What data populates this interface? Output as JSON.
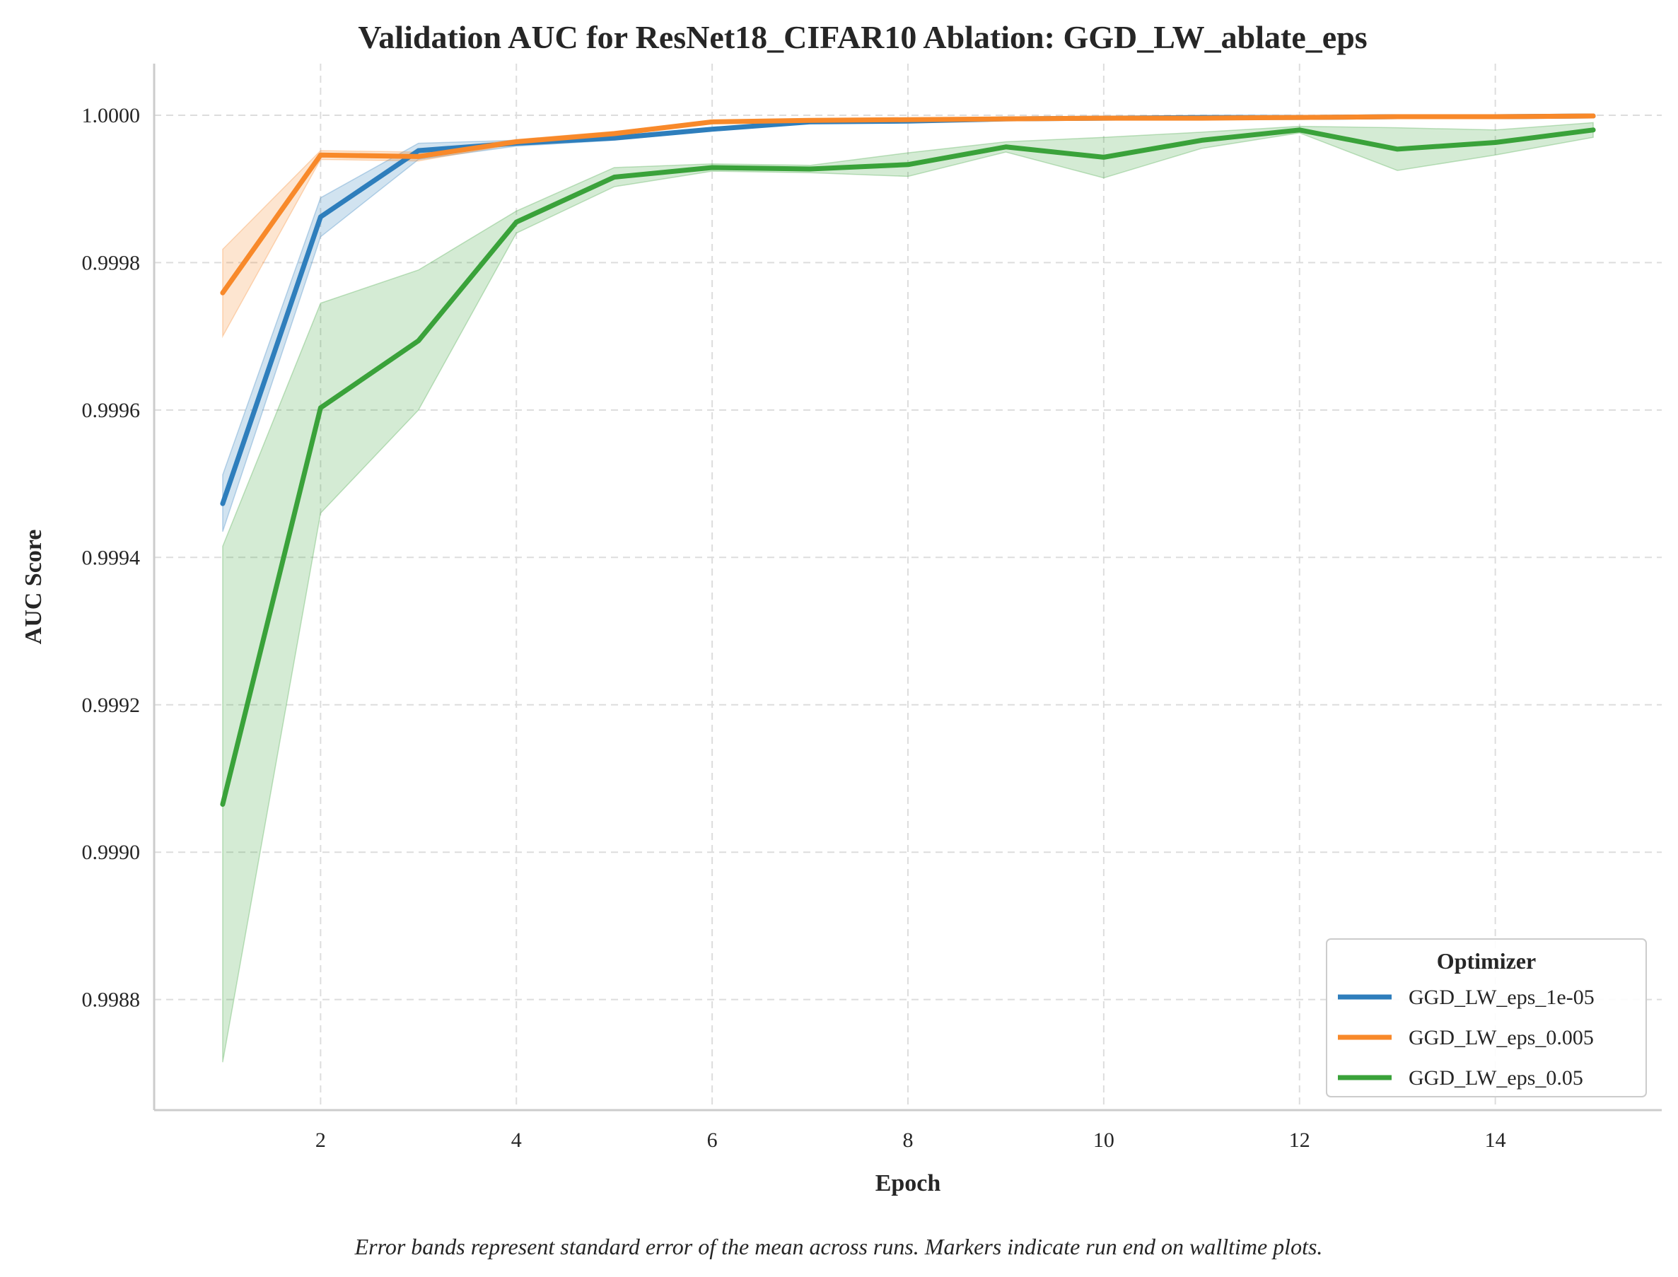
{
  "chart_data": {
    "type": "line",
    "title": "Validation AUC for ResNet18_CIFAR10 Ablation: GGD_LW_ablate_eps",
    "xlabel": "Epoch",
    "ylabel": "AUC Score",
    "xlim": [
      0.3,
      15.7
    ],
    "ylim": [
      0.99865,
      1.00007
    ],
    "x_ticks": [
      2,
      4,
      6,
      8,
      10,
      12,
      14
    ],
    "x_tick_labels": [
      "2",
      "4",
      "6",
      "8",
      "10",
      "12",
      "14"
    ],
    "y_ticks": [
      0.9988,
      0.999,
      0.9992,
      0.9994,
      0.9996,
      0.9998,
      1.0
    ],
    "y_tick_labels": [
      "0.9988",
      "0.9990",
      "0.9992",
      "0.9994",
      "0.9996",
      "0.9998",
      "1.0000"
    ],
    "grid": true,
    "legend": {
      "title": "Optimizer",
      "position": "bottom-right"
    },
    "x": [
      1,
      2,
      3,
      4,
      5,
      6,
      7,
      8,
      9,
      10,
      11,
      12,
      13,
      14,
      15
    ],
    "series": [
      {
        "name": "GGD_LW_eps_1e-05",
        "color": "#2e7ebc",
        "values": [
          0.999473,
          0.999862,
          0.999952,
          0.999962,
          0.999969,
          0.999981,
          0.999991,
          0.999992,
          0.999995,
          0.999996,
          0.999997,
          0.999997,
          0.999998,
          0.999998,
          0.999999
        ],
        "lower": [
          0.999435,
          0.999835,
          0.99994,
          0.999958,
          0.999966,
          0.999979,
          0.99999,
          0.999991,
          0.999994,
          0.999995,
          0.999996,
          0.999996,
          0.999997,
          0.999997,
          0.999998
        ],
        "upper": [
          0.999512,
          0.999888,
          0.999962,
          0.999966,
          0.999972,
          0.999983,
          0.999992,
          0.999993,
          0.999996,
          0.999997,
          0.999998,
          0.999998,
          0.999999,
          0.999999,
          1.0
        ]
      },
      {
        "name": "GGD_LW_eps_0.005",
        "color": "#f8892a",
        "values": [
          0.999759,
          0.999946,
          0.999944,
          0.999964,
          0.999975,
          0.999991,
          0.999993,
          0.999994,
          0.999995,
          0.999996,
          0.999996,
          0.999997,
          0.999998,
          0.999998,
          0.999999
        ],
        "lower": [
          0.9997,
          0.99994,
          0.999938,
          0.999961,
          0.999972,
          0.999989,
          0.999992,
          0.999993,
          0.999994,
          0.999995,
          0.999995,
          0.999996,
          0.999997,
          0.999997,
          0.999998
        ],
        "upper": [
          0.999818,
          0.999952,
          0.99995,
          0.999967,
          0.999978,
          0.999993,
          0.999994,
          0.999995,
          0.999996,
          0.999997,
          0.999997,
          0.999998,
          0.999999,
          0.999999,
          1.0
        ]
      },
      {
        "name": "GGD_LW_eps_0.05",
        "color": "#3aa23a",
        "values": [
          0.999065,
          0.999603,
          0.999694,
          0.999855,
          0.999916,
          0.999929,
          0.999927,
          0.999933,
          0.999957,
          0.999943,
          0.999966,
          0.99998,
          0.999954,
          0.999963,
          0.99998
        ],
        "lower": [
          0.998715,
          0.99946,
          0.9996,
          0.99984,
          0.999903,
          0.999924,
          0.999922,
          0.999917,
          0.99995,
          0.999915,
          0.999955,
          0.999976,
          0.999925,
          0.999946,
          0.99997
        ],
        "upper": [
          0.999415,
          0.999745,
          0.99979,
          0.99987,
          0.999929,
          0.999934,
          0.999932,
          0.999949,
          0.999964,
          0.99997,
          0.999977,
          0.999985,
          0.999983,
          0.99998,
          0.99999
        ]
      }
    ],
    "caption": "Error bands represent standard error of the mean across runs. Markers indicate run end on walltime plots."
  }
}
